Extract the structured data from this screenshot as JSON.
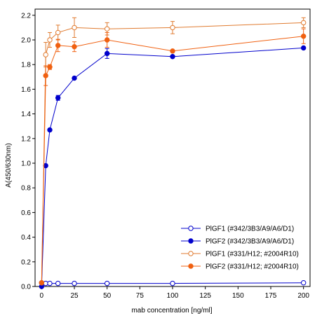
{
  "chart_data": {
    "type": "line",
    "xlabel": "mab concentration [ng/ml]",
    "ylabel": "A(450/630nm)",
    "xlim": [
      -5,
      205
    ],
    "ylim": [
      0,
      2.25
    ],
    "xticks": [
      "0",
      "25",
      "50",
      "75",
      "100",
      "125",
      "150",
      "175",
      "200"
    ],
    "yticks": [
      "0.0",
      "0.2",
      "0.4",
      "0.6",
      "0.8",
      "1.0",
      "1.2",
      "1.4",
      "1.6",
      "1.8",
      "2.0",
      "2.2"
    ],
    "grid": false,
    "legend_position": "bottom-right",
    "series": [
      {
        "name": "PlGF1 (#342/3B3/A9/A6/D1)",
        "color": "#0000cc",
        "marker": "open-circle",
        "x": [
          0,
          3.125,
          6.25,
          12.5,
          25,
          50,
          100,
          200
        ],
        "y": [
          0.03,
          0.025,
          0.025,
          0.025,
          0.025,
          0.025,
          0.025,
          0.03
        ],
        "err": [
          0,
          0,
          0,
          0,
          0,
          0,
          0,
          0
        ]
      },
      {
        "name": "PlGF2 (#342/3B3/A9/A6/D1)",
        "color": "#0000cc",
        "marker": "filled-circle",
        "x": [
          0,
          3.125,
          6.25,
          12.5,
          25,
          50,
          100,
          200
        ],
        "y": [
          0.0,
          0.98,
          1.27,
          1.53,
          1.69,
          1.89,
          1.865,
          1.935
        ],
        "err": [
          0,
          0,
          0,
          0.02,
          0,
          0.04,
          0,
          0
        ]
      },
      {
        "name": "PlGF1 (#331/H12; #2004R10)",
        "color": "#e07b30",
        "marker": "open-circle",
        "x": [
          0,
          3.125,
          6.25,
          12.5,
          25,
          50,
          100,
          200
        ],
        "y": [
          0.03,
          1.88,
          2.0,
          2.06,
          2.1,
          2.09,
          2.1,
          2.14
        ],
        "err": [
          0,
          0.1,
          0.06,
          0.06,
          0.08,
          0.05,
          0.05,
          0.04
        ]
      },
      {
        "name": "PlGF2 (#331/H12; #2004R10)",
        "color": "#f06010",
        "marker": "filled-circle",
        "x": [
          0,
          3.125,
          6.25,
          12.5,
          25,
          50,
          100,
          200
        ],
        "y": [
          0.03,
          1.71,
          1.78,
          1.955,
          1.945,
          2.0,
          1.91,
          2.03
        ],
        "err": [
          0,
          0.08,
          0.02,
          0.05,
          0.04,
          0.06,
          0.01,
          0.06
        ]
      }
    ]
  }
}
